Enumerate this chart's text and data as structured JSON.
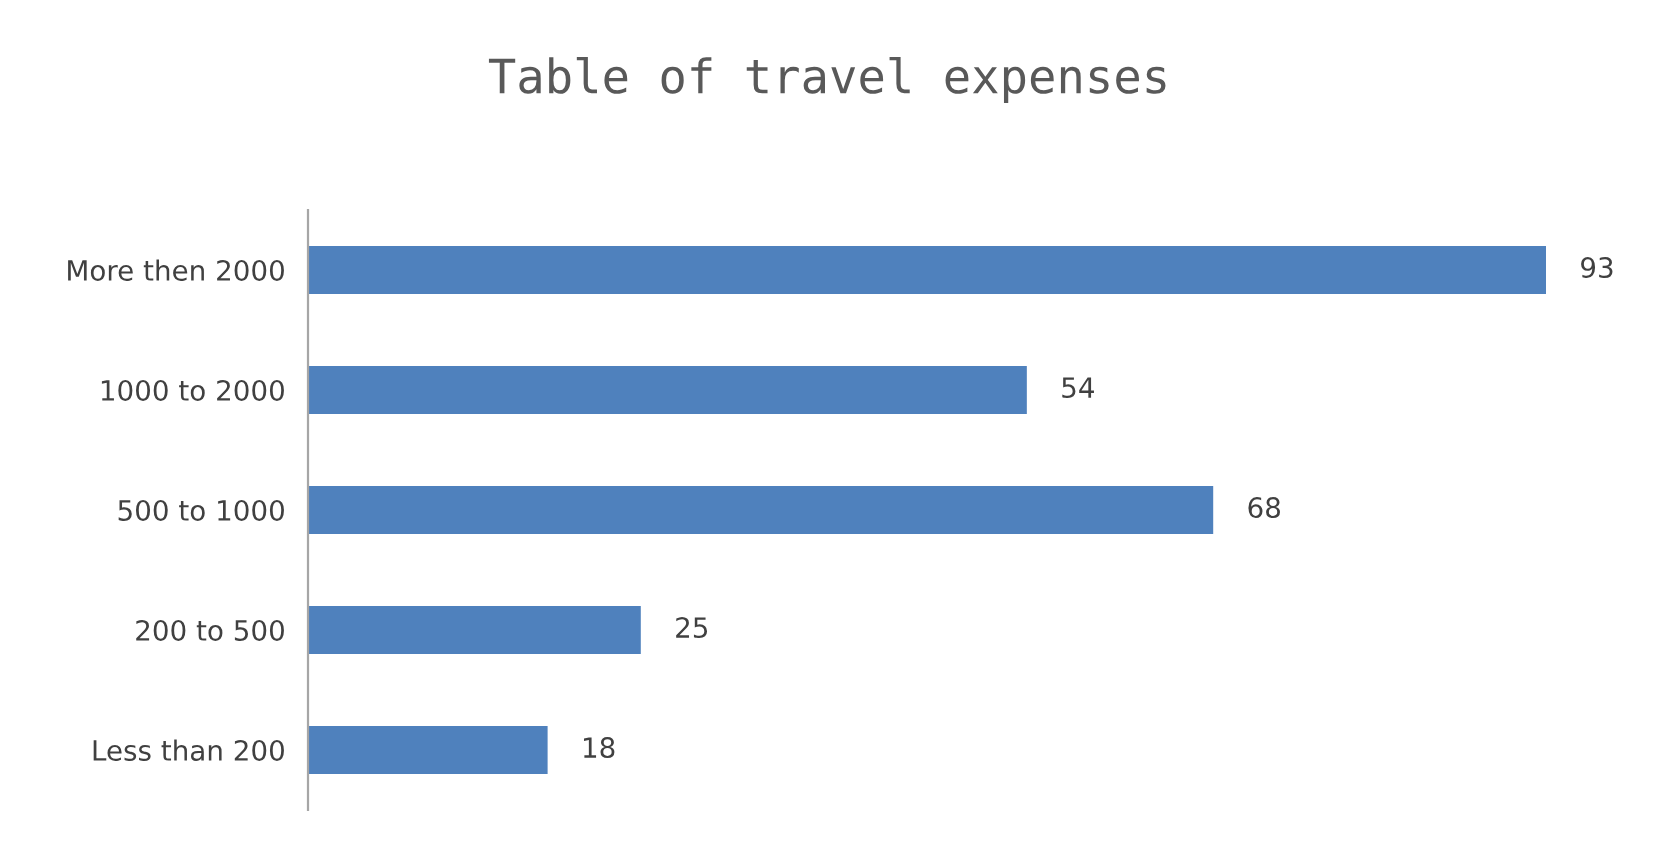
{
  "chart_data": {
    "type": "bar",
    "orientation": "horizontal",
    "title": "Table of travel expenses",
    "categories": [
      "More then 2000",
      "1000 to 2000",
      "500 to 1000",
      "200 to 500",
      "Less than 200"
    ],
    "values": [
      93,
      54,
      68,
      25,
      18
    ],
    "color": "#4f81bd",
    "data_labels": true,
    "grid": false,
    "legend": false
  }
}
